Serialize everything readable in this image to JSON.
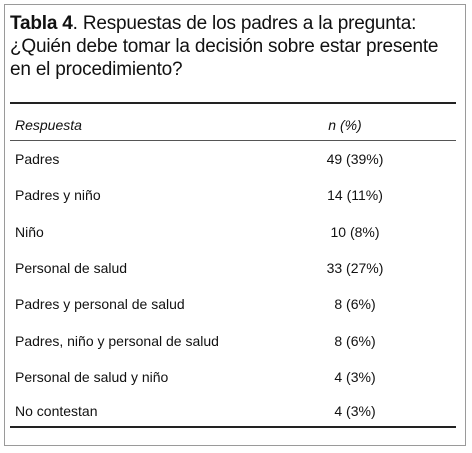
{
  "caption": {
    "label": "Tabla 4",
    "text": ". Respuestas de los padres a la pregunta: ¿Quién debe tomar la decisión sobre estar presente en el procedimiento?"
  },
  "table": {
    "headers": {
      "respuesta": "Respuesta",
      "n": "n (%)"
    },
    "rows": [
      {
        "respuesta": "Padres",
        "n": "49 (39%)"
      },
      {
        "respuesta": "Padres y niño",
        "n": "14 (11%)"
      },
      {
        "respuesta": "Niño",
        "n": "10 (8%)"
      },
      {
        "respuesta": "Personal de salud",
        "n": "33 (27%)"
      },
      {
        "respuesta": "Padres y personal de salud",
        "n": "8 (6%)"
      },
      {
        "respuesta": "Padres, niño y personal de salud",
        "n": "8 (6%)"
      },
      {
        "respuesta": "Personal de salud y niño",
        "n": "4 (3%)"
      },
      {
        "respuesta": "No contestan",
        "n": "4 (3%)"
      }
    ]
  }
}
